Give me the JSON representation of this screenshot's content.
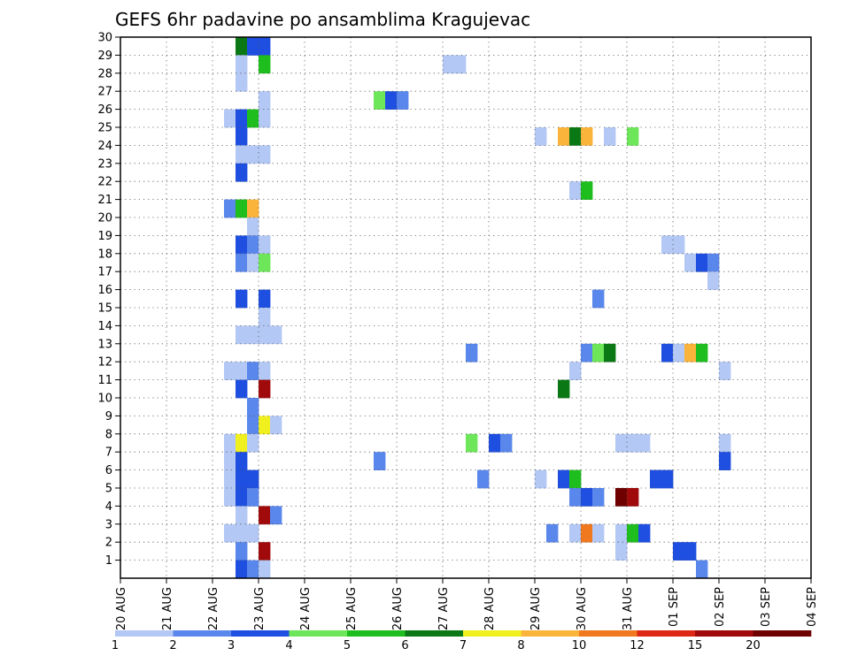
{
  "chart_data": {
    "type": "heatmap",
    "title": "GEFS 6hr padavine po ansamblima Kragujevac",
    "x_tick_labels": [
      "20 AUG",
      "21 AUG",
      "22 AUG",
      "23 AUG",
      "24 AUG",
      "25 AUG",
      "26 AUG",
      "27 AUG",
      "28 AUG",
      "29 AUG",
      "30 AUG",
      "31 AUG",
      "01 SEP",
      "02 SEP",
      "03 SEP",
      "04 SEP"
    ],
    "y_tick_labels": [
      "1",
      "2",
      "3",
      "4",
      "5",
      "6",
      "7",
      "8",
      "9",
      "10",
      "11",
      "12",
      "13",
      "14",
      "15",
      "16",
      "17",
      "18",
      "19",
      "20",
      "21",
      "22",
      "23",
      "24",
      "25",
      "26",
      "27",
      "28",
      "29",
      "30"
    ],
    "ylim": [
      0,
      30
    ],
    "xlim_days": [
      0,
      15
    ],
    "grid": true,
    "colorbar": {
      "boundaries": [
        "1",
        "2",
        "3",
        "4",
        "5",
        "6",
        "7",
        "8",
        "10",
        "12",
        "15",
        "20"
      ],
      "colors": [
        "#b4c8f5",
        "#5a87ec",
        "#1e4fe0",
        "#6ee65a",
        "#1ebe1e",
        "#0a7814",
        "#f0f01e",
        "#fab43c",
        "#f0781e",
        "#dc2814",
        "#a00a0a",
        "#6e0000"
      ]
    },
    "cells": [
      {
        "m": 30,
        "s": [
          [
            10,
            5
          ],
          [
            11,
            2
          ],
          [
            12,
            2
          ]
        ]
      },
      {
        "m": 29,
        "s": [
          [
            10,
            0
          ],
          [
            12,
            4
          ],
          [
            28,
            0
          ],
          [
            29,
            0
          ]
        ]
      },
      {
        "m": 28,
        "s": [
          [
            10,
            0
          ]
        ]
      },
      {
        "m": 27,
        "s": [
          [
            12,
            0
          ],
          [
            22,
            3
          ],
          [
            23,
            2
          ],
          [
            24,
            1
          ]
        ]
      },
      {
        "m": 26,
        "s": [
          [
            9,
            0
          ],
          [
            10,
            2
          ],
          [
            11,
            4
          ],
          [
            12,
            0
          ]
        ]
      },
      {
        "m": 25,
        "s": [
          [
            10,
            2
          ],
          [
            36,
            0
          ],
          [
            38,
            7
          ],
          [
            39,
            5
          ],
          [
            40,
            7
          ],
          [
            42,
            0
          ],
          [
            44,
            3
          ]
        ]
      },
      {
        "m": 24,
        "s": [
          [
            10,
            0
          ],
          [
            11,
            0
          ],
          [
            12,
            0
          ]
        ]
      },
      {
        "m": 23,
        "s": [
          [
            10,
            2
          ]
        ]
      },
      {
        "m": 22,
        "s": [
          [
            39,
            0
          ],
          [
            40,
            4
          ]
        ]
      },
      {
        "m": 21,
        "s": [
          [
            9,
            1
          ],
          [
            10,
            4
          ],
          [
            11,
            7
          ]
        ]
      },
      {
        "m": 20,
        "s": [
          [
            11,
            0
          ]
        ]
      },
      {
        "m": 19,
        "s": [
          [
            10,
            2
          ],
          [
            11,
            1
          ],
          [
            12,
            0
          ],
          [
            47,
            0
          ],
          [
            48,
            0
          ]
        ]
      },
      {
        "m": 18,
        "s": [
          [
            10,
            1
          ],
          [
            11,
            0
          ],
          [
            12,
            3
          ],
          [
            49,
            0
          ],
          [
            50,
            2
          ],
          [
            51,
            1
          ]
        ]
      },
      {
        "m": 17,
        "s": [
          [
            51,
            0
          ]
        ]
      },
      {
        "m": 16,
        "s": [
          [
            10,
            2
          ],
          [
            12,
            2
          ],
          [
            41,
            1
          ]
        ]
      },
      {
        "m": 15,
        "s": [
          [
            12,
            0
          ]
        ]
      },
      {
        "m": 14,
        "s": [
          [
            10,
            0
          ],
          [
            11,
            0
          ],
          [
            12,
            0
          ],
          [
            13,
            0
          ]
        ]
      },
      {
        "m": 13,
        "s": [
          [
            30,
            1
          ],
          [
            40,
            1
          ],
          [
            41,
            3
          ],
          [
            42,
            5
          ],
          [
            47,
            2
          ],
          [
            48,
            0
          ],
          [
            49,
            7
          ],
          [
            50,
            4
          ]
        ]
      },
      {
        "m": 12,
        "s": [
          [
            9,
            0
          ],
          [
            10,
            0
          ],
          [
            11,
            1
          ],
          [
            12,
            0
          ],
          [
            39,
            0
          ],
          [
            52,
            0
          ]
        ]
      },
      {
        "m": 11,
        "s": [
          [
            10,
            2
          ],
          [
            12,
            10
          ],
          [
            38,
            5
          ]
        ]
      },
      {
        "m": 10,
        "s": [
          [
            11,
            1
          ]
        ]
      },
      {
        "m": 9,
        "s": [
          [
            11,
            1
          ],
          [
            12,
            6
          ],
          [
            13,
            0
          ]
        ]
      },
      {
        "m": 8,
        "s": [
          [
            9,
            0
          ],
          [
            10,
            6
          ],
          [
            11,
            0
          ],
          [
            30,
            3
          ],
          [
            32,
            2
          ],
          [
            33,
            1
          ],
          [
            43,
            0
          ],
          [
            44,
            0
          ],
          [
            45,
            0
          ],
          [
            52,
            0
          ]
        ]
      },
      {
        "m": 7,
        "s": [
          [
            9,
            0
          ],
          [
            10,
            2
          ],
          [
            22,
            1
          ],
          [
            52,
            2
          ]
        ]
      },
      {
        "m": 6,
        "s": [
          [
            9,
            0
          ],
          [
            10,
            2
          ],
          [
            11,
            2
          ],
          [
            31,
            1
          ],
          [
            36,
            0
          ],
          [
            38,
            2
          ],
          [
            39,
            4
          ],
          [
            46,
            2
          ],
          [
            47,
            2
          ]
        ]
      },
      {
        "m": 5,
        "s": [
          [
            9,
            0
          ],
          [
            10,
            2
          ],
          [
            11,
            1
          ],
          [
            39,
            1
          ],
          [
            40,
            2
          ],
          [
            41,
            1
          ],
          [
            43,
            11
          ],
          [
            44,
            10
          ]
        ]
      },
      {
        "m": 4,
        "s": [
          [
            10,
            0
          ],
          [
            12,
            10
          ],
          [
            13,
            1
          ]
        ]
      },
      {
        "m": 3,
        "s": [
          [
            9,
            0
          ],
          [
            10,
            0
          ],
          [
            11,
            0
          ],
          [
            37,
            1
          ],
          [
            39,
            0
          ],
          [
            40,
            8
          ],
          [
            41,
            0
          ],
          [
            43,
            0
          ],
          [
            44,
            4
          ],
          [
            45,
            2
          ]
        ]
      },
      {
        "m": 2,
        "s": [
          [
            10,
            1
          ],
          [
            12,
            10
          ],
          [
            43,
            0
          ],
          [
            48,
            2
          ],
          [
            49,
            2
          ]
        ]
      },
      {
        "m": 1,
        "s": [
          [
            10,
            2
          ],
          [
            11,
            1
          ],
          [
            12,
            0
          ],
          [
            50,
            1
          ]
        ]
      }
    ]
  }
}
